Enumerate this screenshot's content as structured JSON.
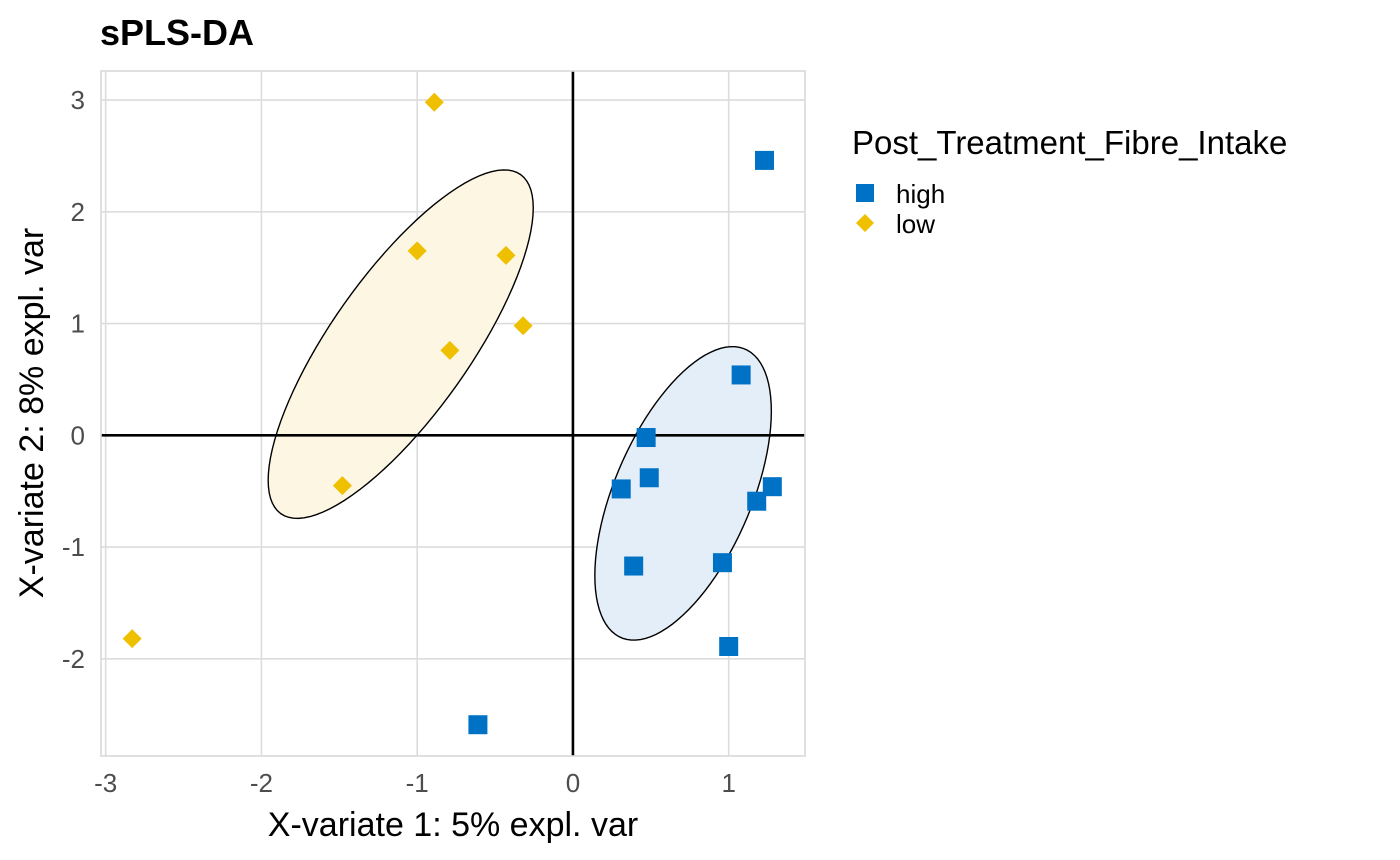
{
  "chart_data": {
    "type": "scatter",
    "title": "sPLS-DA",
    "xlabel": "X-variate 1: 5% expl. var",
    "ylabel": "X-variate 2: 8% expl. var",
    "xlim": [
      -3.03,
      1.49
    ],
    "ylim": [
      -2.87,
      3.26
    ],
    "xticks": [
      -3,
      -2,
      -1,
      0,
      1
    ],
    "yticks": [
      -2,
      -1,
      0,
      1,
      2,
      3
    ],
    "xtick_labels": [
      "-3",
      "-2",
      "-1",
      "0",
      "1"
    ],
    "ytick_labels": [
      "-2",
      "-1",
      "0",
      "1",
      "2",
      "3"
    ],
    "grid": true,
    "reference_lines": {
      "x": 0,
      "y": 0
    },
    "ellipses": true,
    "ellipse_scale_sd": 1,
    "legend": {
      "title": "Post_Treatment_Fibre_Intake",
      "position": "right"
    },
    "series": [
      {
        "name": "high",
        "marker": "square",
        "color": "#0072C6",
        "ellipse_fill": "#E3EEF8",
        "x": [
          1.23,
          1.08,
          0.47,
          0.49,
          0.31,
          1.28,
          1.18,
          0.39,
          0.96,
          1.0,
          -0.61
        ],
        "y": [
          2.46,
          0.54,
          -0.02,
          -0.38,
          -0.48,
          -0.46,
          -0.59,
          -1.17,
          -1.14,
          -1.89,
          -2.59
        ]
      },
      {
        "name": "low",
        "marker": "diamond",
        "color": "#EFC000",
        "ellipse_fill": "#FCF6E3",
        "x": [
          -0.89,
          -1.0,
          -0.43,
          -0.32,
          -0.79,
          -1.48,
          -2.83
        ],
        "y": [
          2.98,
          1.65,
          1.61,
          0.98,
          0.76,
          -0.45,
          -1.82
        ]
      }
    ]
  }
}
